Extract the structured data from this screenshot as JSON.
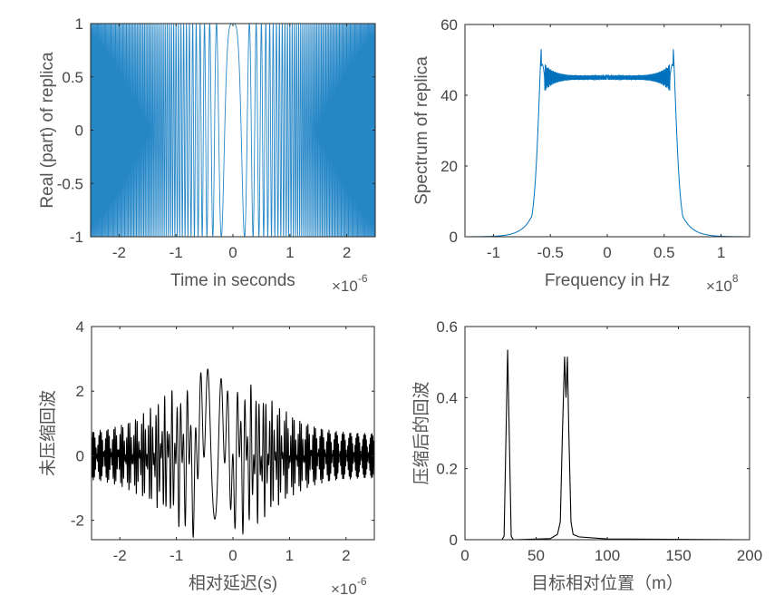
{
  "chart_data": [
    {
      "id": "replica-real",
      "type": "line",
      "title": "",
      "xlabel": "Time in seconds",
      "ylabel": "Real (part) of replica",
      "x_exponent_base": "×10",
      "x_exponent": "-6",
      "xlim": [
        -2.5,
        2.5
      ],
      "ylim": [
        -1,
        1
      ],
      "xticks": [
        -2,
        -1,
        0,
        1,
        2
      ],
      "xtick_labels": [
        "-2",
        "-1",
        "0",
        "1",
        "2"
      ],
      "yticks": [
        -1,
        -0.5,
        0,
        0.5,
        1
      ],
      "ytick_labels": [
        "-1",
        "-0.5",
        "0",
        "0.5",
        "1"
      ],
      "color": "#0072BD",
      "description": "Linear FM chirp real part: cos(pi*k*t^2), amplitude 1, frequency increasing away from t=0",
      "signal": {
        "kind": "chirp",
        "amplitude": 1,
        "duration_us": 5,
        "bandwidth_MHz": 120
      }
    },
    {
      "id": "replica-spectrum",
      "type": "line",
      "title": "",
      "xlabel": "Frequency in Hz",
      "ylabel": "Spectrum of replica",
      "x_exponent_base": "×10",
      "x_exponent": "8",
      "xlim": [
        -1.25,
        1.25
      ],
      "ylim": [
        0,
        60
      ],
      "xticks": [
        -1,
        -0.5,
        0,
        0.5,
        1
      ],
      "xtick_labels": [
        "-1",
        "-0.5",
        "0",
        "0.5",
        "1"
      ],
      "yticks": [
        0,
        20,
        40,
        60
      ],
      "ytick_labels": [
        "0",
        "20",
        "40",
        "60"
      ],
      "color": "#0072BD",
      "series": [
        {
          "name": "spectrum",
          "x": [
            -1.25,
            -1.0,
            -0.8,
            -0.7,
            -0.65,
            -0.62,
            -0.6,
            -0.58,
            -0.55,
            -0.5,
            -0.3,
            0,
            0.3,
            0.5,
            0.55,
            0.58,
            0.6,
            0.62,
            0.65,
            0.7,
            0.8,
            1.0,
            1.25
          ],
          "y": [
            0,
            0.5,
            3,
            8,
            18,
            35,
            50,
            53,
            45,
            45,
            45,
            45,
            45,
            45,
            45,
            53,
            50,
            35,
            18,
            8,
            3,
            0.5,
            0
          ]
        }
      ],
      "annotations": [
        "edge peaks ≈ 53 at ±0.58e8 Hz",
        "plateau ≈ 45 with ripple 39–49 near edges"
      ]
    },
    {
      "id": "uncompressed-echo",
      "type": "line",
      "title": "",
      "xlabel": "相对延迟(s)",
      "ylabel": "未压缩回波",
      "x_exponent_base": "×10",
      "x_exponent": "-6",
      "xlim": [
        -2.5,
        2.5
      ],
      "ylim": [
        -2.6,
        4
      ],
      "xticks": [
        -2,
        -1,
        0,
        1,
        2
      ],
      "xtick_labels": [
        "-2",
        "-1",
        "0",
        "1",
        "2"
      ],
      "yticks": [
        -2,
        0,
        2,
        4
      ],
      "ytick_labels": [
        "-2",
        "0",
        "2",
        "4"
      ],
      "color": "#000000",
      "description": "Sum of two delayed chirp echoes; max ≈ 2.8 near -0.15e-6 s and 2.7 near -0.5e-6 s; min ≈ -2.6 near 0",
      "peaks": [
        {
          "x": -0.52,
          "y": 2.7
        },
        {
          "x": -0.17,
          "y": 2.8
        },
        {
          "x": 0.0,
          "y": -2.6
        },
        {
          "x": -0.7,
          "y": -2.4
        }
      ]
    },
    {
      "id": "compressed-echo",
      "type": "line",
      "title": "",
      "xlabel": "目标相对位置（m）",
      "ylabel": "压缩后的回波",
      "xlim": [
        0,
        200
      ],
      "ylim": [
        0,
        0.6
      ],
      "xticks": [
        0,
        50,
        100,
        150,
        200
      ],
      "xtick_labels": [
        "0",
        "50",
        "100",
        "150",
        "200"
      ],
      "yticks": [
        0,
        0.2,
        0.4,
        0.6
      ],
      "ytick_labels": [
        "0",
        "0.2",
        "0.4",
        "0.6"
      ],
      "color": "#000000",
      "series": [
        {
          "name": "compressed",
          "x": [
            0,
            26,
            27.5,
            30,
            32.5,
            34,
            60,
            65,
            67,
            68.5,
            70,
            71,
            72,
            73,
            74.5,
            76,
            80,
            100,
            200
          ],
          "y": [
            0,
            0,
            0.01,
            0.535,
            0.01,
            0,
            0.003,
            0.015,
            0.05,
            0.3,
            0.515,
            0.4,
            0.515,
            0.3,
            0.05,
            0.015,
            0.008,
            0.002,
            0
          ]
        }
      ],
      "peaks": [
        {
          "x": 30,
          "y": 0.535
        },
        {
          "x": 70,
          "y": 0.515
        },
        {
          "x": 72.5,
          "y": 0.515
        }
      ]
    }
  ]
}
